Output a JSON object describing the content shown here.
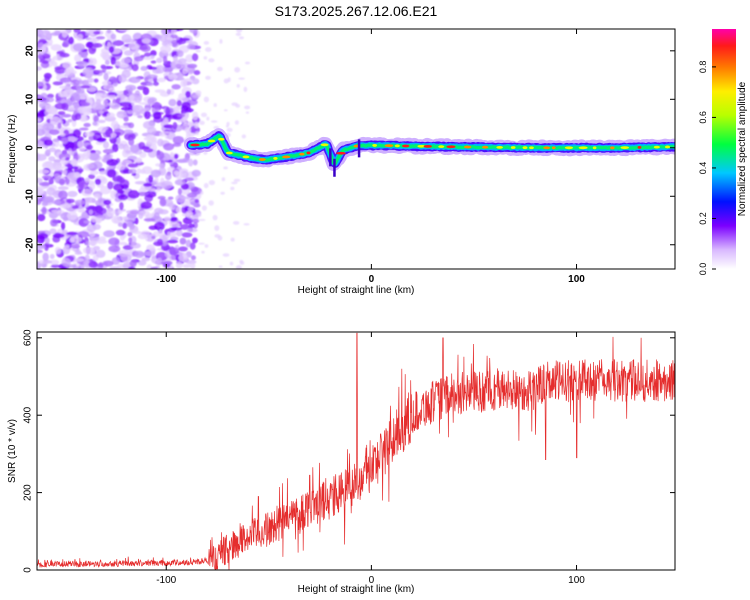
{
  "title": "S173.2025.267.12.06.E21",
  "chart_data": [
    {
      "type": "heatmap",
      "xlabel": "Height of straight line (km)",
      "ylabel": "Frequency (Hz)",
      "xlim": [
        -163,
        148
      ],
      "ylim": [
        -25,
        24.5
      ],
      "x_ticks": [
        -100,
        0,
        100
      ],
      "y_ticks": [
        -20,
        -10,
        0,
        10,
        20
      ],
      "description_values": {
        "noise_region_x": [
          -163,
          -85
        ],
        "signal_start_x": -88,
        "signal_line_frequency": 0,
        "signal_track": [
          {
            "x": -88,
            "f": 0.5
          },
          {
            "x": -80,
            "f": 0.8
          },
          {
            "x": -74,
            "f": 2.5
          },
          {
            "x": -70,
            "f": -1.0
          },
          {
            "x": -60,
            "f": -2.0
          },
          {
            "x": -52,
            "f": -2.5
          },
          {
            "x": -40,
            "f": -1.8
          },
          {
            "x": -30,
            "f": -1.0
          },
          {
            "x": -22,
            "f": 0.8
          },
          {
            "x": -18,
            "f": -3.5
          },
          {
            "x": -14,
            "f": -0.5
          },
          {
            "x": -6,
            "f": 0.5
          },
          {
            "x": 0,
            "f": 0.5
          },
          {
            "x": 40,
            "f": 0.2
          },
          {
            "x": 80,
            "f": 0.0
          },
          {
            "x": 120,
            "f": 0.0
          },
          {
            "x": 148,
            "f": 0.2
          }
        ]
      },
      "colorbar": {
        "label": "Normalized spectral amplitude",
        "range": [
          0,
          0.95
        ],
        "ticks": [
          "0.0",
          "0.2",
          "0.4",
          "0.6",
          "0.8"
        ],
        "tick_values": [
          0.0,
          0.2,
          0.4,
          0.6,
          0.8
        ]
      }
    },
    {
      "type": "line",
      "xlabel": "Height of straight line (km)",
      "ylabel": "SNR (10 * v/v)",
      "xlim": [
        -163,
        148
      ],
      "ylim": [
        0,
        615
      ],
      "x_ticks": [
        -100,
        0,
        100
      ],
      "y_ticks": [
        0,
        200,
        400,
        600
      ],
      "color": "#e52d2d",
      "series": [
        {
          "name": "SNR",
          "envelope": [
            {
              "x": -163,
              "y": 15
            },
            {
              "x": -90,
              "y": 20
            },
            {
              "x": -80,
              "y": 25
            },
            {
              "x": -75,
              "y": 40
            },
            {
              "x": -70,
              "y": 60
            },
            {
              "x": -60,
              "y": 90
            },
            {
              "x": -50,
              "y": 110
            },
            {
              "x": -40,
              "y": 140
            },
            {
              "x": -30,
              "y": 170
            },
            {
              "x": -20,
              "y": 190
            },
            {
              "x": -10,
              "y": 220
            },
            {
              "x": 0,
              "y": 270
            },
            {
              "x": 10,
              "y": 340
            },
            {
              "x": 20,
              "y": 410
            },
            {
              "x": 30,
              "y": 440
            },
            {
              "x": 40,
              "y": 460
            },
            {
              "x": 60,
              "y": 470
            },
            {
              "x": 80,
              "y": 470
            },
            {
              "x": 84,
              "y": 490
            },
            {
              "x": 100,
              "y": 495
            },
            {
              "x": 120,
              "y": 495
            },
            {
              "x": 148,
              "y": 495
            }
          ],
          "spikes": [
            {
              "x": -7,
              "y": 612
            },
            {
              "x": -55,
              "y": 190
            },
            {
              "x": -30,
              "y": 245
            },
            {
              "x": 85,
              "y": 285
            },
            {
              "x": 100,
              "y": 290
            },
            {
              "x": 35,
              "y": 600
            }
          ]
        }
      ]
    }
  ]
}
